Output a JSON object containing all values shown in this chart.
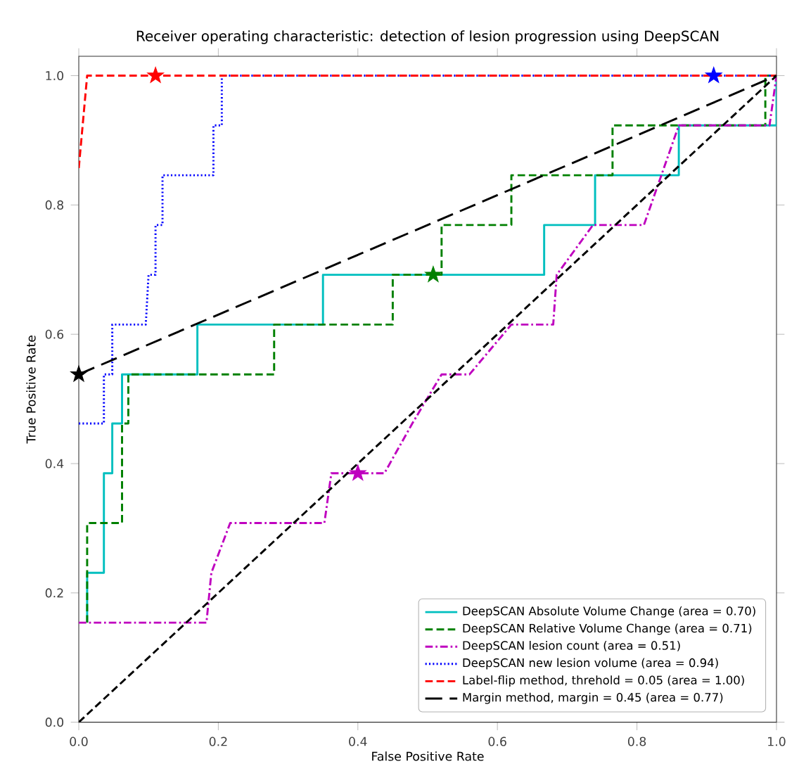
{
  "chart_data": {
    "type": "line",
    "title": "Receiver operating characteristic: detection of lesion progression using DeepSCAN",
    "xlabel": "False Positive Rate",
    "ylabel": "True Positive Rate",
    "xlim": [
      0,
      1
    ],
    "ylim": [
      0,
      1.03
    ],
    "xticks": [
      {
        "value": 0,
        "label": "0.0"
      },
      {
        "value": 0.2,
        "label": "0.2"
      },
      {
        "value": 0.4,
        "label": "0.4"
      },
      {
        "value": 0.6,
        "label": "0.6"
      },
      {
        "value": 0.8,
        "label": "0.8"
      },
      {
        "value": 1,
        "label": "1.0"
      }
    ],
    "yticks": [
      {
        "value": 0,
        "label": "0.0"
      },
      {
        "value": 0.2,
        "label": "0.2"
      },
      {
        "value": 0.4,
        "label": "0.4"
      },
      {
        "value": 0.6,
        "label": "0.6"
      },
      {
        "value": 0.8,
        "label": "0.8"
      },
      {
        "value": 1,
        "label": "1.0"
      }
    ],
    "grid": false,
    "legend": "bottom right",
    "marker": "none",
    "series": [
      {
        "name": "DeepSCAN Absolute Volume Change (area = 0.70)",
        "color": "#00bfbf",
        "line_style": "solid",
        "x": [
          0.012,
          0.012,
          0.036,
          0.036,
          0.048,
          0.048,
          0.062,
          0.062,
          0.17,
          0.17,
          0.35,
          0.35,
          0.667,
          0.667,
          0.74,
          0.74,
          0.86,
          0.86,
          1,
          1
        ],
        "values": [
          0.154,
          0.231,
          0.231,
          0.385,
          0.385,
          0.462,
          0.462,
          0.538,
          0.538,
          0.615,
          0.615,
          0.692,
          0.692,
          0.769,
          0.769,
          0.846,
          0.846,
          0.923,
          0.923,
          1
        ]
      },
      {
        "name": "DeepSCAN Relative Volume Change (area = 0.71)",
        "color": "#008000",
        "line_style": "dashed",
        "x": [
          0.012,
          0.012,
          0.062,
          0.062,
          0.071,
          0.071,
          0.28,
          0.28,
          0.45,
          0.45,
          0.52,
          0.52,
          0.62,
          0.62,
          0.765,
          0.765,
          0.984,
          0.984,
          1
        ],
        "values": [
          0.154,
          0.308,
          0.308,
          0.462,
          0.462,
          0.538,
          0.538,
          0.615,
          0.615,
          0.692,
          0.692,
          0.769,
          0.769,
          0.846,
          0.846,
          0.923,
          0.923,
          1,
          1
        ]
      },
      {
        "name": "DeepSCAN lesion count (area = 0.51)",
        "color": "#bf00bf",
        "line_style": "dashdot",
        "x": [
          0,
          0.183,
          0.19,
          0.217,
          0.352,
          0.362,
          0.438,
          0.478,
          0.52,
          0.56,
          0.62,
          0.68,
          0.685,
          0.737,
          0.81,
          0.86,
          0.99,
          1
        ],
        "values": [
          0.154,
          0.154,
          0.231,
          0.308,
          0.308,
          0.385,
          0.385,
          0.462,
          0.538,
          0.538,
          0.615,
          0.615,
          0.692,
          0.769,
          0.769,
          0.923,
          0.923,
          1
        ]
      },
      {
        "name": "DeepSCAN new lesion volume (area = 0.94)",
        "color": "#0000ff",
        "line_style": "dotted",
        "x": [
          0,
          0.036,
          0.036,
          0.048,
          0.048,
          0.096,
          0.1,
          0.11,
          0.11,
          0.12,
          0.12,
          0.193,
          0.193,
          0.205,
          0.205,
          1
        ],
        "values": [
          0.462,
          0.462,
          0.538,
          0.538,
          0.615,
          0.615,
          0.692,
          0.692,
          0.769,
          0.769,
          0.846,
          0.846,
          0.923,
          0.923,
          1,
          1
        ]
      },
      {
        "name": "Label-flip method, threhold = 0.05 (area = 1.00)",
        "color": "#ff0000",
        "line_style": "dashed",
        "x": [
          0,
          0.012,
          1
        ],
        "values": [
          0.857,
          1,
          1
        ]
      },
      {
        "name": "Margin method, margin = 0.45 (area = 0.77)",
        "color": "#000000",
        "line_style": "longdashed",
        "x": [
          0,
          1
        ],
        "values": [
          0.538,
          1
        ]
      },
      {
        "color": "#000000",
        "line_style": "dashed",
        "x": [
          0,
          1
        ],
        "values": [
          0,
          1
        ]
      },
      {
        "type": "scatter",
        "marker": "star",
        "color": "#ff0000",
        "x": [
          0.11
        ],
        "values": [
          1
        ]
      },
      {
        "type": "scatter",
        "marker": "star",
        "color": "#0000ff",
        "x": [
          0.91
        ],
        "values": [
          1
        ]
      },
      {
        "type": "scatter",
        "marker": "star",
        "color": "#008000",
        "x": [
          0.508
        ],
        "values": [
          0.692
        ]
      },
      {
        "type": "scatter",
        "marker": "star",
        "color": "#bf00bf",
        "x": [
          0.4
        ],
        "values": [
          0.385
        ]
      },
      {
        "type": "scatter",
        "marker": "star",
        "color": "#000000",
        "x": [
          0
        ],
        "values": [
          0.538
        ]
      }
    ]
  }
}
